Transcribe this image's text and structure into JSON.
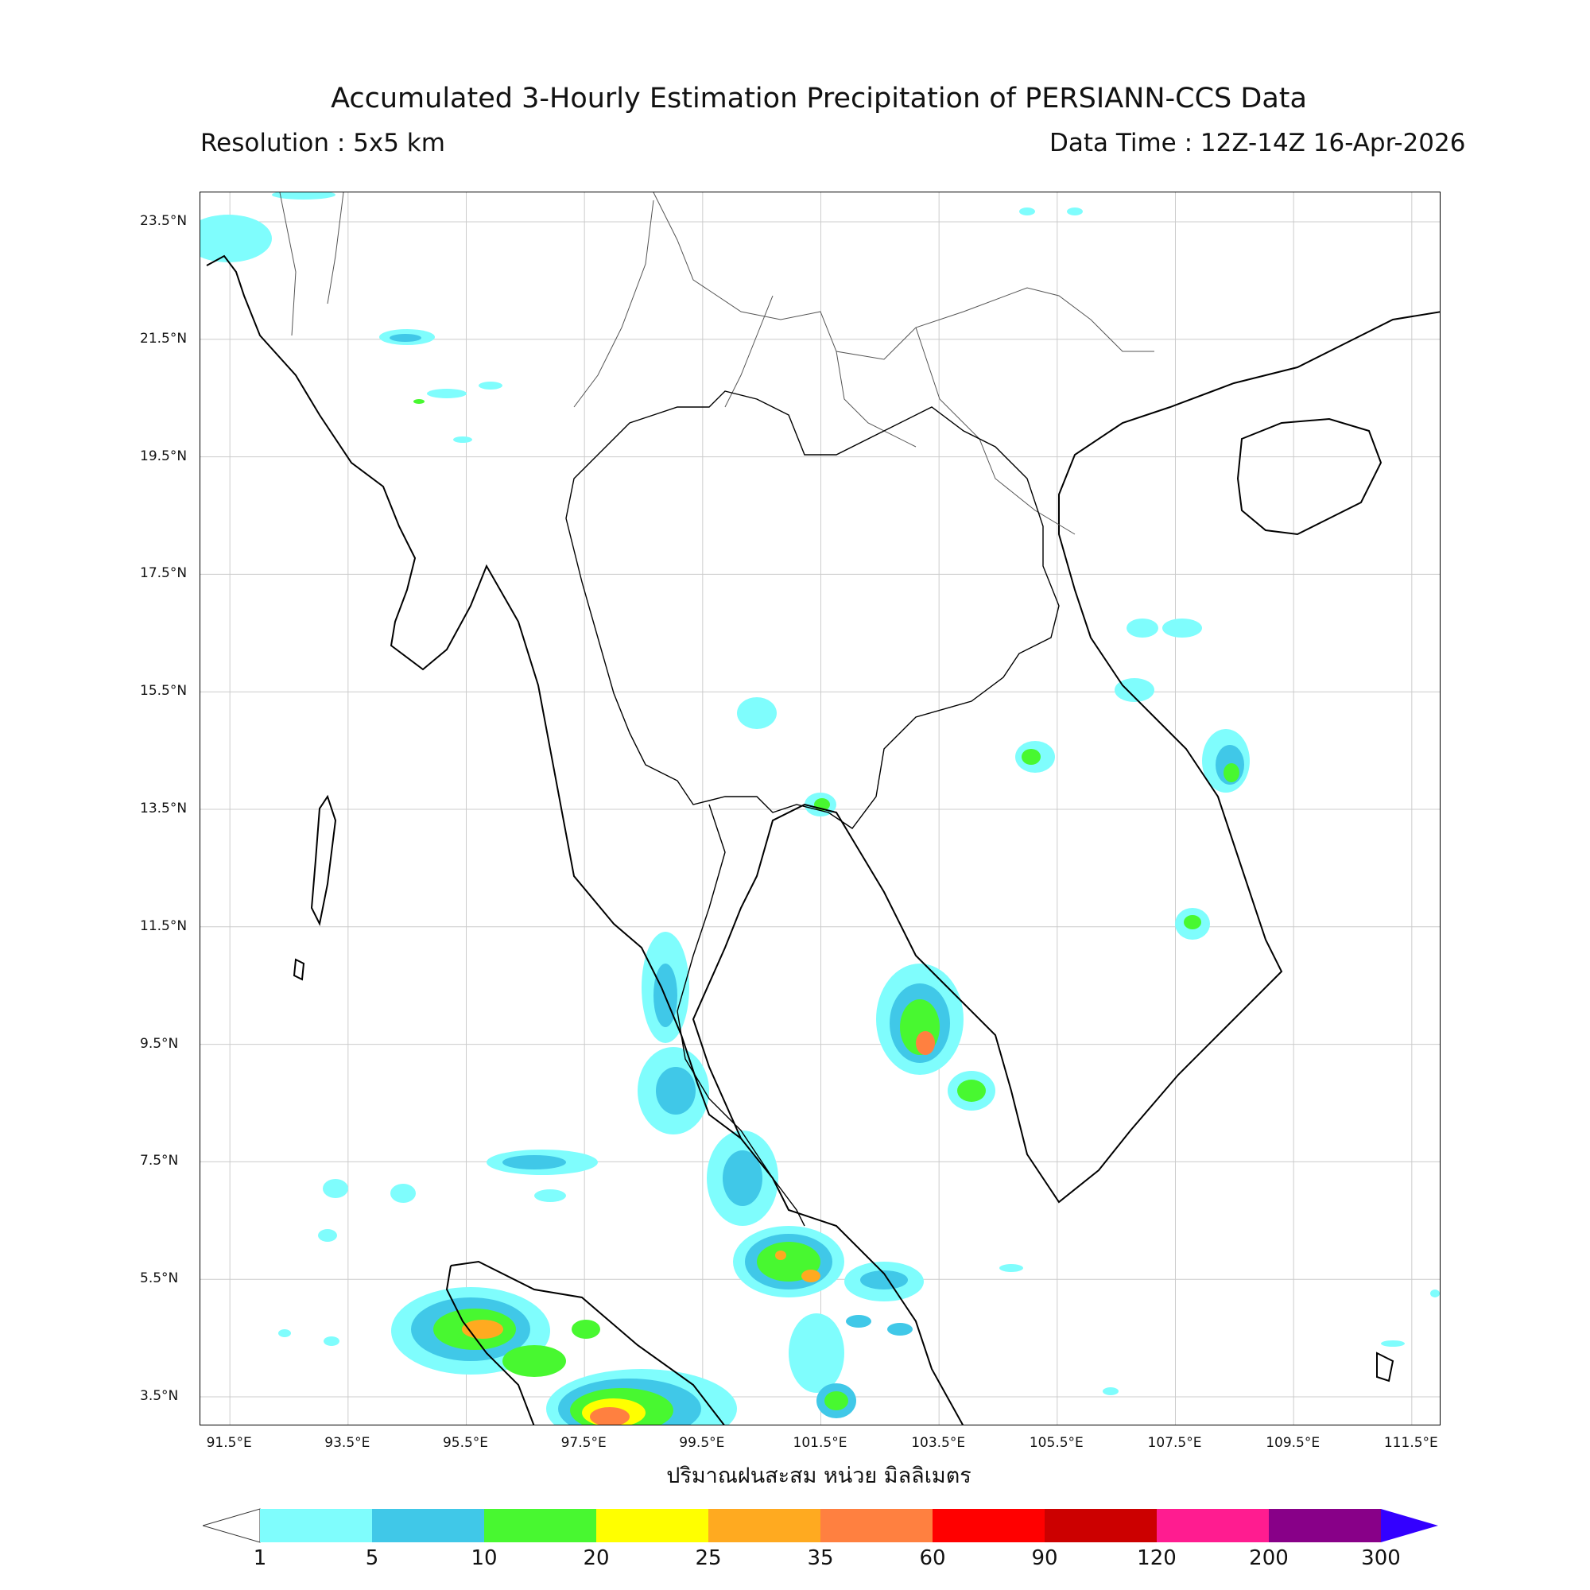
{
  "header": {
    "title": "Accumulated 3-Hourly Estimation Precipitation of PERSIANN-CCS Data",
    "resolution": "Resolution : 5x5 km",
    "data_time": "Data Time : 12Z-14Z 16-Apr-2026"
  },
  "map": {
    "region": "Mainland Southeast Asia",
    "lon_range": [
      91,
      112
    ],
    "lat_range": [
      3,
      24
    ],
    "x_ticks": [
      "91.5°E",
      "93.5°E",
      "95.5°E",
      "97.5°E",
      "99.5°E",
      "101.5°E",
      "103.5°E",
      "105.5°E",
      "107.5°E",
      "109.5°E",
      "111.5°E"
    ],
    "y_ticks": [
      "23.5°N",
      "21.5°N",
      "19.5°N",
      "17.5°N",
      "15.5°N",
      "13.5°N",
      "11.5°N",
      "9.5°N",
      "7.5°N",
      "5.5°N",
      "3.5°N"
    ],
    "gridlines": true
  },
  "colorbar": {
    "label": "ปริมาณฝนสะสม หน่วย มิลลิเมตร",
    "levels": [
      "1",
      "5",
      "10",
      "20",
      "25",
      "35",
      "60",
      "90",
      "120",
      "200",
      "300"
    ],
    "colors": [
      "#7ffdfd",
      "#40c8e8",
      "#48f830",
      "#ffff00",
      "#ffaa20",
      "#ff8040",
      "#ff0000",
      "#cc0000",
      "#ff1c90",
      "#880088",
      "#3300ff"
    ],
    "extend": "both"
  }
}
